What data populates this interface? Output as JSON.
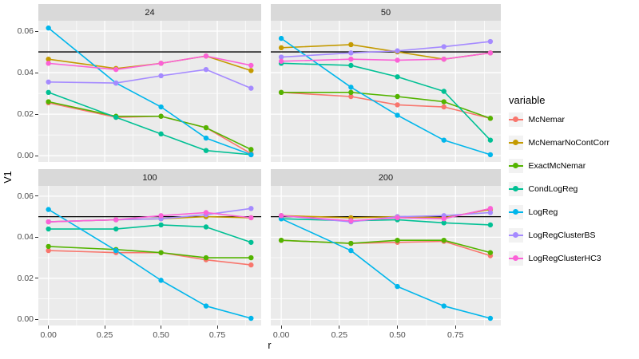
{
  "chart_data": {
    "type": "line",
    "facets": "four panels in a 2x2 grid, shared axes",
    "xlabel": "r",
    "ylabel": "V1",
    "legend_title": "variable",
    "x": [
      0.0,
      0.3,
      0.5,
      0.7,
      0.9
    ],
    "x_tick_values": [
      0.0,
      0.25,
      0.5,
      0.75
    ],
    "x_tick_labels": [
      "0.00",
      "0.25",
      "0.50",
      "0.75"
    ],
    "x_minor_gridlines": [
      0.125,
      0.375,
      0.625,
      0.875
    ],
    "y_tick_values": [
      0.0,
      0.02,
      0.04,
      0.06
    ],
    "y_tick_labels": [
      "0.00",
      "0.02",
      "0.04",
      "0.06"
    ],
    "y_minor_gridlines": [
      0.01,
      0.03,
      0.05
    ],
    "xlim": [
      -0.045,
      0.945
    ],
    "ylim": [
      -0.003,
      0.065
    ],
    "reference_hline_y": 0.05,
    "reference_hline_color": "#000000",
    "panel_background": "#ebebeb",
    "strip_background": "#d9d9d9",
    "gridline_color": "#ffffff",
    "series": [
      {
        "name": "McNemar",
        "color": "#F8766D"
      },
      {
        "name": "McNemarNoContCorr",
        "color": "#C49A00"
      },
      {
        "name": "ExactMcNemar",
        "color": "#53B400"
      },
      {
        "name": "CondLogReg",
        "color": "#00C094"
      },
      {
        "name": "LogReg",
        "color": "#00B6EB"
      },
      {
        "name": "LogRegClusterBS",
        "color": "#A58AFF"
      },
      {
        "name": "LogRegClusterHC3",
        "color": "#FB61D7"
      }
    ],
    "panels": [
      {
        "label": "24",
        "values": {
          "McNemar": [
            0.0255,
            0.0185,
            0.019,
            0.0135,
            0.001
          ],
          "McNemarNoContCorr": [
            0.0465,
            0.042,
            0.0445,
            0.048,
            0.041
          ],
          "ExactMcNemar": [
            0.026,
            0.019,
            0.019,
            0.0135,
            0.003
          ],
          "CondLogReg": [
            0.0305,
            0.0185,
            0.0105,
            0.0025,
            0.0005
          ],
          "LogReg": [
            0.0615,
            0.035,
            0.0235,
            0.0085,
            0.0005
          ],
          "LogRegClusterBS": [
            0.0355,
            0.035,
            0.0385,
            0.0415,
            0.0325
          ],
          "LogRegClusterHC3": [
            0.0445,
            0.0415,
            0.0445,
            0.048,
            0.0435
          ]
        }
      },
      {
        "label": "50",
        "values": {
          "McNemar": [
            0.0305,
            0.0285,
            0.0245,
            0.0235,
            0.018
          ],
          "McNemarNoContCorr": [
            0.052,
            0.0535,
            0.05,
            0.0465,
            0.0495
          ],
          "ExactMcNemar": [
            0.0305,
            0.0305,
            0.0285,
            0.026,
            0.018
          ],
          "CondLogReg": [
            0.0445,
            0.0435,
            0.038,
            0.031,
            0.0075
          ],
          "LogReg": [
            0.0565,
            0.033,
            0.0195,
            0.0075,
            0.0005
          ],
          "LogRegClusterBS": [
            0.0475,
            0.0495,
            0.0505,
            0.0525,
            0.055
          ],
          "LogRegClusterHC3": [
            0.0455,
            0.0465,
            0.046,
            0.0465,
            0.0495
          ]
        }
      },
      {
        "label": "100",
        "values": {
          "McNemar": [
            0.0335,
            0.0325,
            0.0325,
            0.029,
            0.0265
          ],
          "McNemarNoContCorr": [
            0.0475,
            0.0485,
            0.049,
            0.05,
            0.0495
          ],
          "ExactMcNemar": [
            0.0355,
            0.034,
            0.0325,
            0.03,
            0.03
          ],
          "CondLogReg": [
            0.044,
            0.044,
            0.046,
            0.045,
            0.0375
          ],
          "LogReg": [
            0.0535,
            0.0335,
            0.019,
            0.0065,
            0.0005
          ],
          "LogRegClusterBS": [
            0.0475,
            0.0485,
            0.049,
            0.051,
            0.054
          ],
          "LogRegClusterHC3": [
            0.0475,
            0.0485,
            0.0505,
            0.052,
            0.0495
          ]
        }
      },
      {
        "label": "200",
        "values": {
          "McNemar": [
            0.0385,
            0.037,
            0.0375,
            0.038,
            0.031
          ],
          "McNemarNoContCorr": [
            0.0505,
            0.0495,
            0.05,
            0.0495,
            0.0535
          ],
          "ExactMcNemar": [
            0.0385,
            0.037,
            0.0385,
            0.0385,
            0.0325
          ],
          "CondLogReg": [
            0.049,
            0.048,
            0.0485,
            0.047,
            0.046
          ],
          "LogReg": [
            0.049,
            0.0335,
            0.016,
            0.0065,
            0.0005
          ],
          "LogRegClusterBS": [
            0.0505,
            0.0475,
            0.05,
            0.0505,
            0.052
          ],
          "LogRegClusterHC3": [
            0.0505,
            0.048,
            0.0495,
            0.049,
            0.054
          ]
        }
      }
    ]
  },
  "axes": {
    "x_title": "r",
    "y_title": "V1"
  },
  "legend": {
    "title": "variable"
  }
}
